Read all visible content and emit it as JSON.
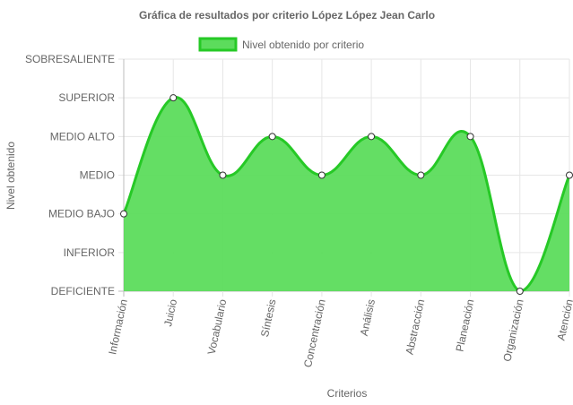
{
  "chart_data": {
    "type": "area",
    "title": "Gráfica de resultados por criterio López López Jean Carlo",
    "xlabel": "Criterios",
    "ylabel": "Nivel obtenido",
    "levels": [
      "DEFICIENTE",
      "INFERIOR",
      "MEDIO BAJO",
      "MEDIO",
      "MEDIO ALTO",
      "SUPERIOR",
      "SOBRESALIENTE"
    ],
    "categories": [
      "Información",
      "Juicio",
      "Vocabulario",
      "Síntesis",
      "Concentración",
      "Análisis",
      "Abstracción",
      "Planeación",
      "Organización",
      "Atención"
    ],
    "series": [
      {
        "name": "Nivel obtenido por criterio",
        "values": [
          "MEDIO BAJO",
          "SUPERIOR",
          "MEDIO",
          "MEDIO ALTO",
          "MEDIO",
          "MEDIO ALTO",
          "MEDIO",
          "MEDIO ALTO",
          "DEFICIENTE",
          "MEDIO"
        ]
      }
    ],
    "grid": true,
    "legend_position": "top",
    "colors": {
      "line": "#26c926",
      "fill": "#5cdc5c",
      "grid": "#e6e6e6",
      "axis": "#bdbdbd",
      "point_fill": "#ffffff",
      "point_stroke": "#333333"
    }
  }
}
